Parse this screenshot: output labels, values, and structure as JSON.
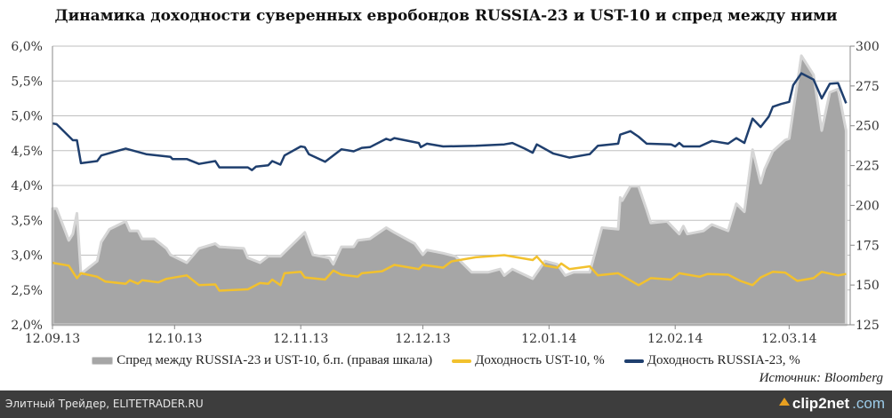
{
  "title": "Динамика доходности суверенных евробондов RUSSIA-23 и UST-10 и спред между ними",
  "source": "Источник: Bloomberg",
  "footer": {
    "text": "Элитный Трейдер, ELITETRADER.RU",
    "logo": "clip2net.com",
    "logo_main": "clip2net",
    "logo_suffix": ".com"
  },
  "colors": {
    "spread_fill": "#a6a6a6",
    "spread_edge": "#d6d6d6",
    "ust": "#f2c12e",
    "russia": "#1f3f6e",
    "grid": "#bfbfbf",
    "footer_bg": "#3d3d3d"
  },
  "chart_data": {
    "type": "line+area",
    "title": "Динамика доходности суверенных евробондов RUSSIA-23 и UST-10 и спред между ними",
    "x_unit": "days since 12.09.13",
    "xlim": [
      0,
      196
    ],
    "x_ticks": [
      {
        "x": 0,
        "label": "12.09.13"
      },
      {
        "x": 30,
        "label": "12.10.13"
      },
      {
        "x": 61,
        "label": "12.11.13"
      },
      {
        "x": 91,
        "label": "12.12.13"
      },
      {
        "x": 122,
        "label": "12.01.14"
      },
      {
        "x": 153,
        "label": "12.02.14"
      },
      {
        "x": 181,
        "label": "12.03.14"
      }
    ],
    "y_left": {
      "lim": [
        2.0,
        6.0
      ],
      "ticks": [
        "2,0%",
        "2,5%",
        "3,0%",
        "3,5%",
        "4,0%",
        "4,5%",
        "5,0%",
        "5,5%",
        "6,0%"
      ],
      "tick_values": [
        2.0,
        2.5,
        3.0,
        3.5,
        4.0,
        4.5,
        5.0,
        5.5,
        6.0
      ]
    },
    "y_right": {
      "lim": [
        125,
        300
      ],
      "ticks": [
        "125",
        "150",
        "175",
        "200",
        "225",
        "250",
        "275",
        "300"
      ],
      "tick_values": [
        125,
        150,
        175,
        200,
        225,
        250,
        275,
        300
      ]
    },
    "grid": true,
    "legend_position": "bottom",
    "series": [
      {
        "name": "Спред между RUSSIA-23 и UST-10, б.п. (правая шкала)",
        "type": "area",
        "axis": "right",
        "x": [
          0,
          1,
          4,
          5,
          6,
          7,
          11,
          12,
          14,
          18,
          19,
          21,
          22,
          25,
          28,
          29,
          33,
          36,
          40,
          41,
          47,
          48,
          51,
          53,
          56,
          62,
          64,
          68,
          69,
          71,
          74,
          75,
          78,
          82,
          84,
          89,
          91,
          92,
          96,
          99,
          103,
          107,
          110,
          111,
          113,
          118,
          121,
          124,
          126,
          128,
          132,
          135,
          139,
          139.5,
          140,
          142,
          144,
          146,
          147,
          151,
          154,
          155,
          156,
          160,
          162,
          166,
          168,
          170,
          172,
          174,
          175,
          177,
          180,
          181,
          184,
          187,
          189,
          191,
          193,
          195
        ],
        "y": [
          198,
          198,
          178,
          182,
          195,
          157,
          165,
          177,
          185,
          190,
          184,
          184,
          179,
          179,
          173,
          169,
          164,
          173,
          176,
          174,
          173,
          167,
          164,
          168,
          168,
          183,
          169,
          167,
          163,
          174,
          174,
          178,
          179,
          186,
          183,
          176,
          169,
          172,
          170,
          168,
          158,
          158,
          160,
          156,
          160,
          154,
          165,
          163,
          156,
          158,
          158,
          186,
          185,
          205,
          203,
          212,
          212,
          197,
          189,
          190,
          182,
          187,
          182,
          184,
          188,
          184,
          201,
          196,
          235,
          214,
          223,
          234,
          241,
          242,
          294,
          282,
          247,
          271,
          273,
          247
        ]
      },
      {
        "name": "Доходность UST-10, %",
        "type": "line",
        "axis": "left",
        "x": [
          0,
          4,
          6,
          7,
          11,
          13,
          18,
          19,
          21,
          22,
          26,
          28,
          33,
          36,
          40,
          41,
          48,
          51,
          53,
          54,
          56,
          57,
          61,
          62,
          67,
          69,
          71,
          75,
          76,
          81,
          84,
          90,
          91,
          96,
          98,
          104,
          111,
          118,
          119,
          121,
          124,
          125,
          127,
          132,
          134,
          139,
          144,
          147,
          152,
          154,
          159,
          161,
          166,
          169,
          172,
          174,
          177,
          180,
          183,
          187,
          189,
          193,
          195
        ],
        "y": [
          2.89,
          2.85,
          2.67,
          2.74,
          2.69,
          2.62,
          2.59,
          2.64,
          2.59,
          2.64,
          2.61,
          2.66,
          2.71,
          2.57,
          2.58,
          2.49,
          2.51,
          2.6,
          2.59,
          2.65,
          2.57,
          2.74,
          2.76,
          2.68,
          2.65,
          2.78,
          2.72,
          2.69,
          2.74,
          2.77,
          2.86,
          2.8,
          2.86,
          2.82,
          2.91,
          2.97,
          3.0,
          2.93,
          2.98,
          2.85,
          2.82,
          2.88,
          2.8,
          2.84,
          2.71,
          2.74,
          2.57,
          2.67,
          2.65,
          2.74,
          2.69,
          2.73,
          2.72,
          2.63,
          2.57,
          2.68,
          2.76,
          2.75,
          2.63,
          2.67,
          2.76,
          2.71,
          2.73
        ]
      },
      {
        "name": "Доходность RUSSIA-23, %",
        "type": "line",
        "axis": "left",
        "x": [
          0,
          1,
          5,
          6,
          7,
          11,
          12,
          18,
          23,
          29,
          29.5,
          33,
          36,
          40,
          41,
          48,
          49,
          50,
          53,
          54,
          56,
          57,
          61,
          62,
          63,
          67,
          71,
          74,
          76,
          78,
          82,
          83,
          84,
          90,
          90.5,
          92,
          96,
          104,
          111,
          113,
          116,
          118,
          119,
          123,
          127,
          132,
          134,
          139,
          139.5,
          142,
          144,
          146,
          152,
          153,
          154,
          155,
          159,
          162,
          166,
          168,
          170,
          172,
          174,
          176,
          177,
          179,
          181,
          182,
          184,
          187,
          189,
          191,
          193,
          195
        ],
        "y": [
          4.89,
          4.88,
          4.65,
          4.65,
          4.32,
          4.35,
          4.43,
          4.53,
          4.45,
          4.41,
          4.38,
          4.38,
          4.31,
          4.35,
          4.26,
          4.26,
          4.22,
          4.27,
          4.29,
          4.35,
          4.3,
          4.43,
          4.56,
          4.55,
          4.45,
          4.34,
          4.52,
          4.49,
          4.54,
          4.55,
          4.67,
          4.65,
          4.68,
          4.61,
          4.55,
          4.6,
          4.56,
          4.57,
          4.59,
          4.61,
          4.53,
          4.47,
          4.59,
          4.46,
          4.4,
          4.45,
          4.57,
          4.6,
          4.73,
          4.78,
          4.7,
          4.6,
          4.59,
          4.56,
          4.61,
          4.56,
          4.56,
          4.64,
          4.6,
          4.68,
          4.61,
          4.96,
          4.84,
          4.99,
          5.13,
          5.17,
          5.2,
          5.44,
          5.61,
          5.52,
          5.25,
          5.46,
          5.47,
          5.18
        ]
      }
    ]
  }
}
